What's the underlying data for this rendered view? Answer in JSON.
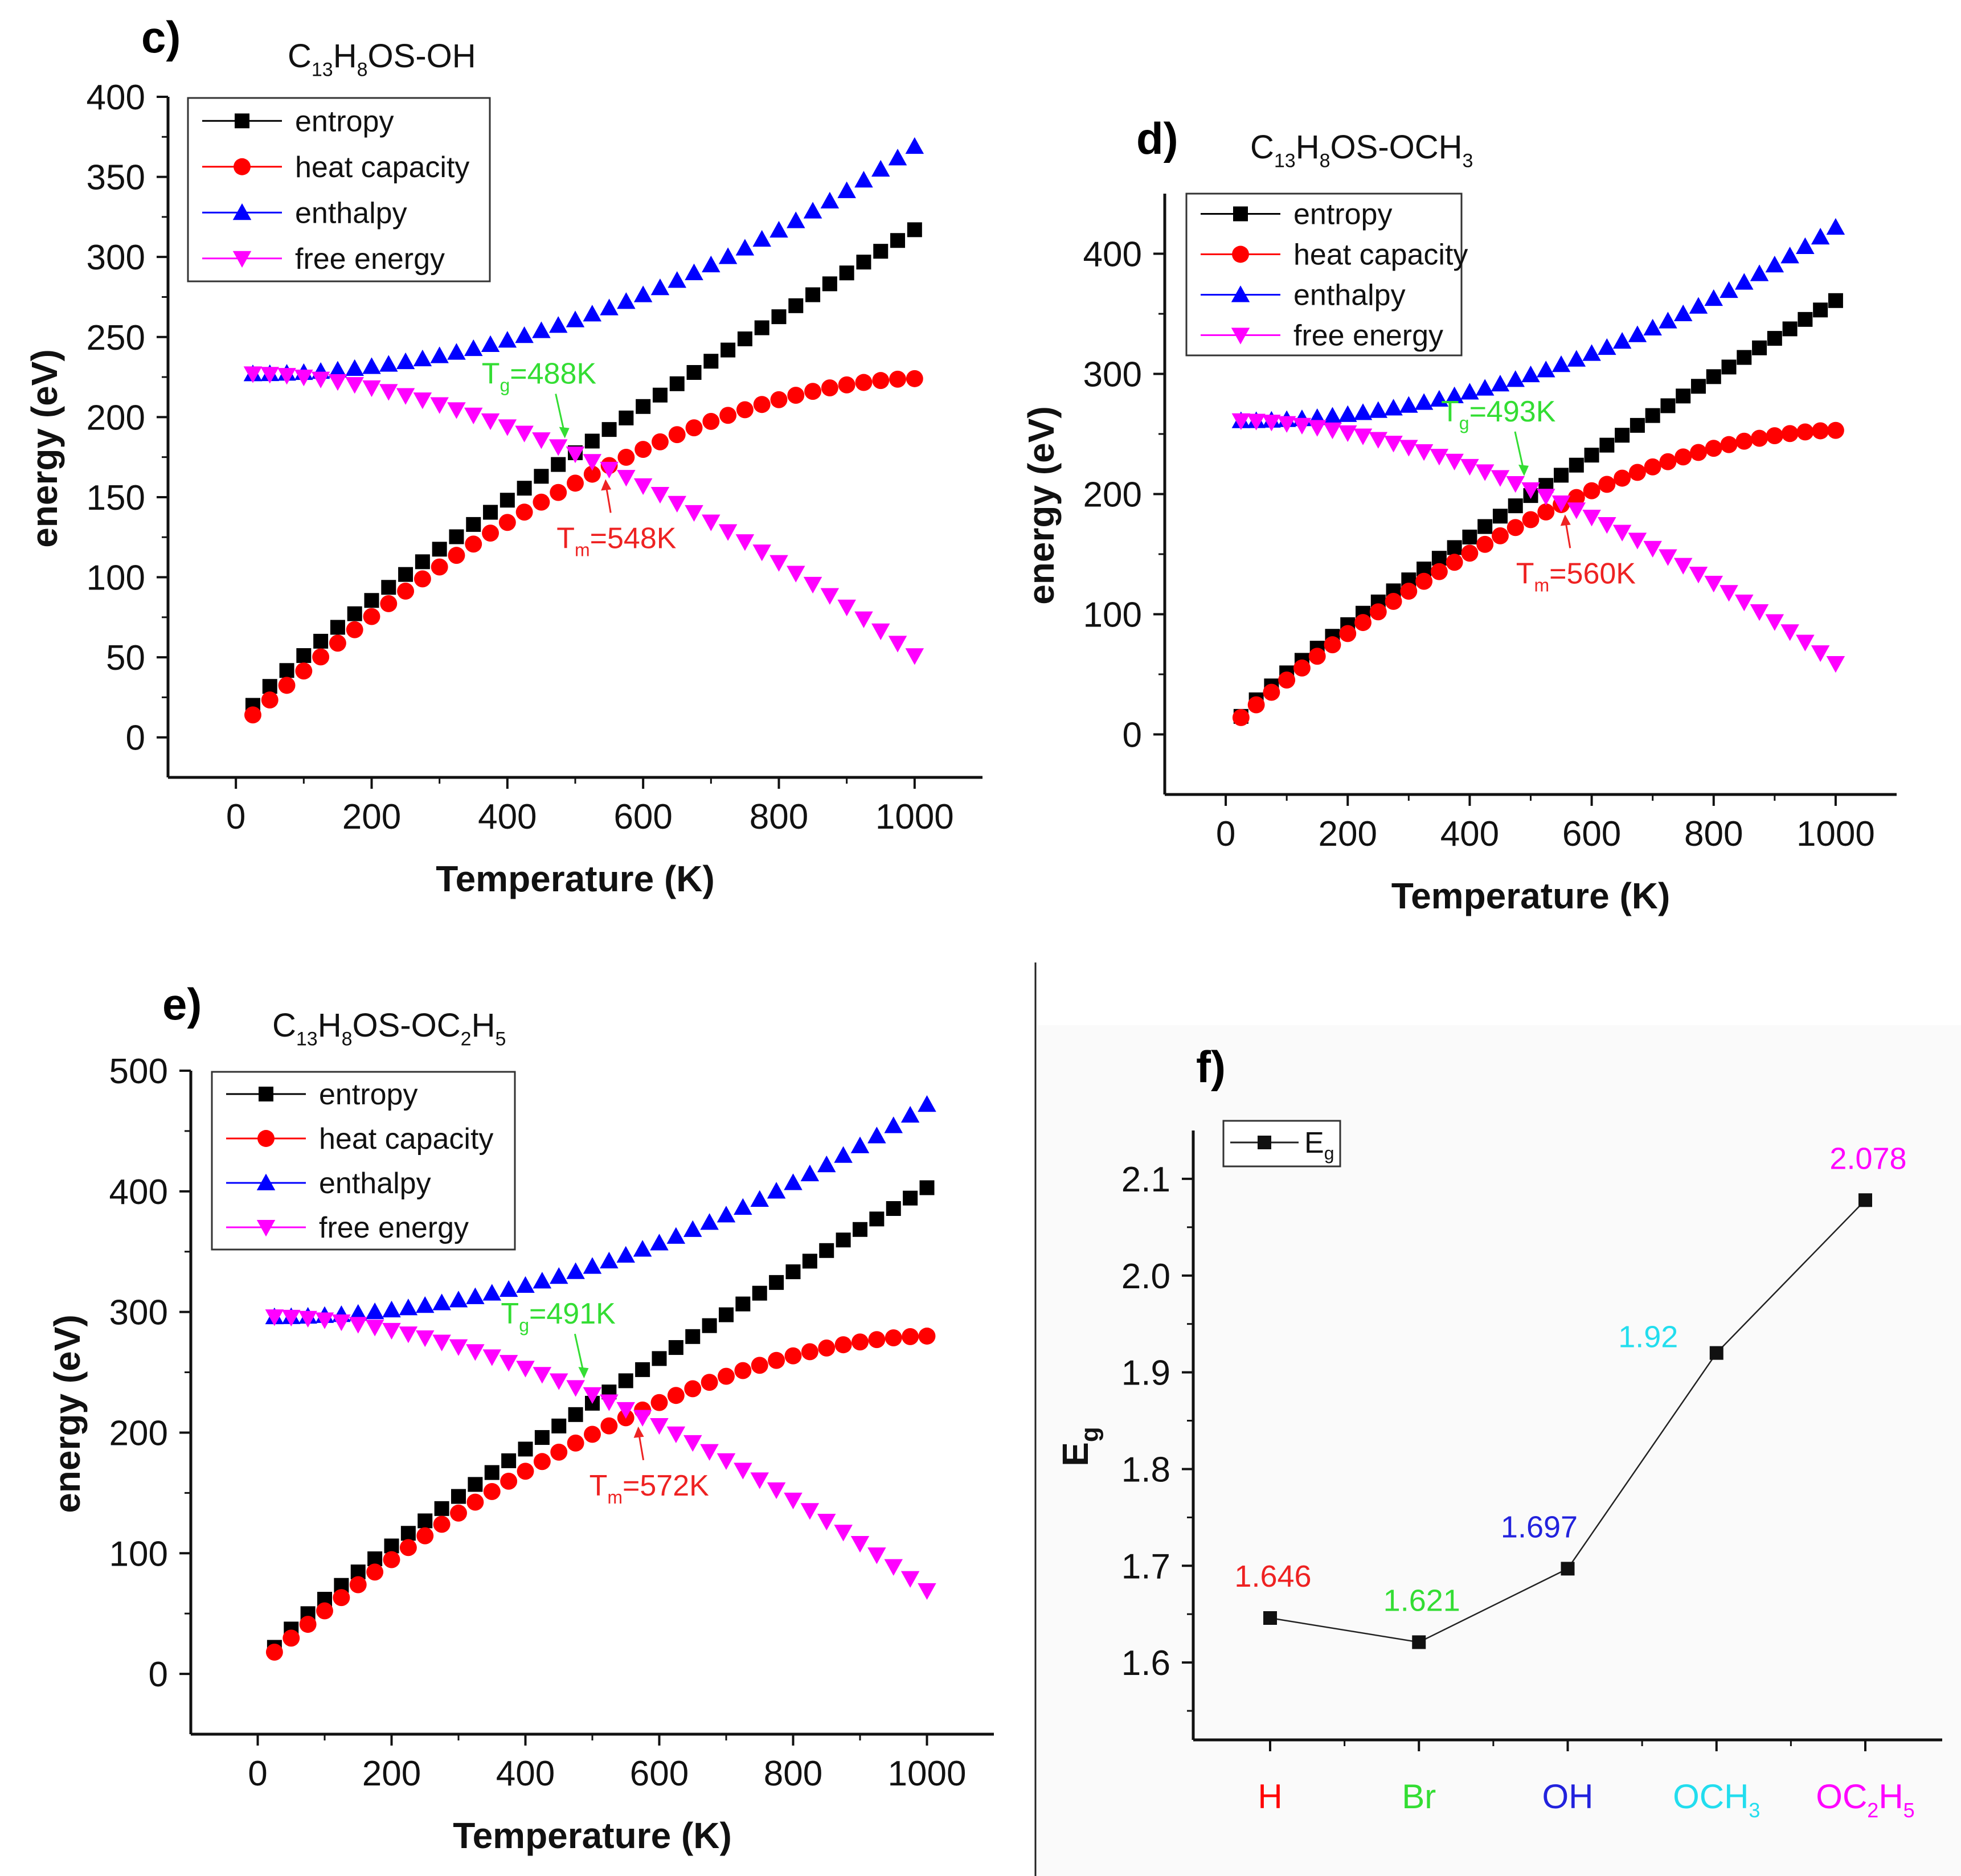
{
  "chart_data": [
    {
      "panel": "c)",
      "type": "scatter",
      "title": "C13H8OS-OH",
      "title_parts": [
        "C",
        "13",
        "H",
        "8",
        "OS-OH"
      ],
      "xlabel": "Temperature (K)",
      "ylabel": "energy (eV)",
      "xlim": [
        -100,
        1100
      ],
      "ylim": [
        -25,
        400
      ],
      "xticks": [
        0,
        200,
        400,
        600,
        800,
        1000
      ],
      "yticks": [
        0,
        50,
        100,
        150,
        200,
        250,
        300,
        350,
        400
      ],
      "legend_position": "top-left",
      "T_start": 25,
      "T_step": 25,
      "n": 40,
      "series": [
        {
          "name": "entropy",
          "marker": "square",
          "color": "#000000",
          "end_values": [
            20,
            317
          ],
          "curve": "rising-concave"
        },
        {
          "name": "heat capacity",
          "marker": "circle",
          "color": "#ff0000",
          "end_values": [
            14,
            224
          ],
          "curve": "rising-saturating"
        },
        {
          "name": "enthalpy",
          "marker": "triangle-up",
          "color": "#0000ff",
          "end_values": [
            227,
            369
          ],
          "curve": "rising-convex"
        },
        {
          "name": "free energy",
          "marker": "triangle-down",
          "color": "#ff00ff",
          "end_values": [
            227,
            51
          ],
          "curve": "falling-convex"
        }
      ],
      "annotations": [
        {
          "label_main": "T",
          "label_sub": "g",
          "label_rest": "=488K",
          "x": 488,
          "y": 180,
          "color": "#33dd33"
        },
        {
          "label_main": "T",
          "label_sub": "m",
          "label_rest": "=548K",
          "x": 548,
          "y": 168,
          "color": "#ee2222"
        }
      ]
    },
    {
      "panel": "d)",
      "type": "scatter",
      "title": "C13H8OS-OCH3",
      "title_parts": [
        "C",
        "13",
        "H",
        "8",
        "OS-OCH",
        "3"
      ],
      "xlabel": "Temperature (K)",
      "ylabel": "energy (eV)",
      "xlim": [
        -100,
        1100
      ],
      "ylim": [
        -50,
        450
      ],
      "xticks": [
        0,
        200,
        400,
        600,
        800,
        1000
      ],
      "yticks": [
        0,
        100,
        200,
        300,
        400
      ],
      "legend_position": "top-left",
      "T_start": 25,
      "T_step": 25,
      "n": 40,
      "series": [
        {
          "name": "entropy",
          "marker": "square",
          "color": "#000000",
          "end_values": [
            15,
            361
          ],
          "curve": "rising-concave"
        },
        {
          "name": "heat capacity",
          "marker": "circle",
          "color": "#ff0000",
          "end_values": [
            14,
            253
          ],
          "curve": "rising-saturating"
        },
        {
          "name": "enthalpy",
          "marker": "triangle-up",
          "color": "#0000ff",
          "end_values": [
            261,
            422
          ],
          "curve": "rising-convex"
        },
        {
          "name": "free energy",
          "marker": "triangle-down",
          "color": "#ff00ff",
          "end_values": [
            261,
            59
          ],
          "curve": "falling-convex"
        }
      ],
      "annotations": [
        {
          "label_main": "T",
          "label_sub": "g",
          "label_rest": "=493K",
          "x": 493,
          "y": 206,
          "color": "#33dd33"
        },
        {
          "label_main": "T",
          "label_sub": "m",
          "label_rest": "=560K",
          "x": 560,
          "y": 192,
          "color": "#ee2222"
        }
      ]
    },
    {
      "panel": "e)",
      "type": "scatter",
      "title": "C13H8OS-OC2H5",
      "title_parts": [
        "C",
        "13",
        "H",
        "8",
        "OS-OC",
        "2",
        "H",
        "5"
      ],
      "xlabel": "Temperature (K)",
      "ylabel": "energy (eV)",
      "xlim": [
        -100,
        1100
      ],
      "ylim": [
        -50,
        500
      ],
      "xticks": [
        0,
        200,
        400,
        600,
        800,
        1000
      ],
      "yticks": [
        0,
        100,
        200,
        300,
        400,
        500
      ],
      "legend_position": "top-left",
      "T_start": 25,
      "T_step": 25,
      "n": 40,
      "series": [
        {
          "name": "entropy",
          "marker": "square",
          "color": "#000000",
          "end_values": [
            22,
            403
          ],
          "curve": "rising-concave"
        },
        {
          "name": "heat capacity",
          "marker": "circle",
          "color": "#ff0000",
          "end_values": [
            18,
            280
          ],
          "curve": "rising-saturating"
        },
        {
          "name": "enthalpy",
          "marker": "triangle-up",
          "color": "#0000ff",
          "end_values": [
            296,
            472
          ],
          "curve": "rising-convex"
        },
        {
          "name": "free energy",
          "marker": "triangle-down",
          "color": "#ff00ff",
          "end_values": [
            296,
            69
          ],
          "curve": "falling-convex"
        }
      ],
      "annotations": [
        {
          "label_main": "T",
          "label_sub": "g",
          "label_rest": "=491K",
          "x": 491,
          "y": 236,
          "color": "#33dd33"
        },
        {
          "label_main": "T",
          "label_sub": "m",
          "label_rest": "=572K",
          "x": 572,
          "y": 214,
          "color": "#ee2222"
        }
      ]
    },
    {
      "panel": "f)",
      "type": "line",
      "title": "",
      "xlabel": "",
      "ylabel": "Eg",
      "ylabel_parts": [
        "E",
        "g"
      ],
      "ylim": [
        1.52,
        2.15
      ],
      "yticks": [
        1.6,
        1.7,
        1.8,
        1.9,
        2.0,
        2.1
      ],
      "ytick_labels": [
        "1.6",
        "1.7",
        "1.8",
        "1.9",
        "2.0",
        "2.1"
      ],
      "legend_position": "top-left",
      "legend": {
        "main": "E",
        "sub": "g"
      },
      "categories": [
        {
          "parts": [
            "H"
          ],
          "color": "#ff0000"
        },
        {
          "parts": [
            "Br"
          ],
          "color": "#33dd33"
        },
        {
          "parts": [
            "OH"
          ],
          "color": "#2222dd"
        },
        {
          "parts": [
            "OCH",
            "3"
          ],
          "color": "#22ddee"
        },
        {
          "parts": [
            "OC",
            "2",
            "H",
            "5"
          ],
          "color": "#ff00ff"
        }
      ],
      "category_names": [
        "H",
        "Br",
        "OH",
        "OCH3",
        "OC2H5"
      ],
      "values": [
        1.646,
        1.621,
        1.697,
        1.92,
        2.078
      ],
      "data_labels": [
        "1.646",
        "1.621",
        "1.697",
        "1.92",
        "2.078"
      ],
      "data_label_colors": [
        "#ee2222",
        "#33dd33",
        "#2222dd",
        "#22ddee",
        "#ff00ff"
      ]
    }
  ]
}
